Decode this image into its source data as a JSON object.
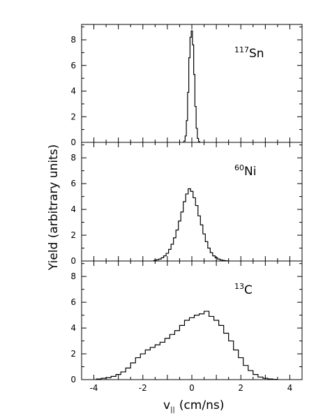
{
  "chart_data": {
    "type": "line",
    "ylabel": "Yield (arbitrary units)",
    "xlabel_main": "v",
    "xlabel_sub": "||",
    "xlabel_unit": "(cm/ns)",
    "xlim": [
      -4.5,
      4.5
    ],
    "x_ticks": [
      "-4",
      "-2",
      "0",
      "2",
      "4"
    ],
    "x_tick_values": [
      -4,
      -2,
      0,
      2,
      4
    ],
    "y_ticks": [
      "0",
      "2",
      "4",
      "6",
      "8"
    ],
    "y_tick_values": [
      0,
      2,
      4,
      6,
      8
    ],
    "grid": false,
    "panels": [
      {
        "label_mass": "117",
        "label_element": "Sn",
        "ylim": [
          0,
          9.2
        ],
        "step": "histogram",
        "x": [
          -0.3,
          -0.25,
          -0.2,
          -0.15,
          -0.1,
          -0.05,
          0.0,
          0.05,
          0.1,
          0.15,
          0.2,
          0.25,
          0.3
        ],
        "values": [
          0.1,
          0.5,
          1.7,
          3.9,
          6.6,
          8.2,
          8.7,
          7.6,
          5.3,
          2.8,
          1.1,
          0.3,
          0.05
        ]
      },
      {
        "label_mass": "60",
        "label_element": "Ni",
        "ylim": [
          0,
          9.2
        ],
        "step": "histogram",
        "x": [
          -1.5,
          -1.4,
          -1.3,
          -1.2,
          -1.1,
          -1.0,
          -0.9,
          -0.8,
          -0.7,
          -0.6,
          -0.5,
          -0.4,
          -0.3,
          -0.2,
          -0.1,
          0.0,
          0.1,
          0.2,
          0.3,
          0.4,
          0.5,
          0.6,
          0.7,
          0.8,
          0.9,
          1.0,
          1.1,
          1.2,
          1.3,
          1.4
        ],
        "values": [
          0.05,
          0.1,
          0.15,
          0.25,
          0.4,
          0.6,
          0.9,
          1.3,
          1.8,
          2.4,
          3.1,
          3.8,
          4.6,
          5.2,
          5.6,
          5.4,
          4.9,
          4.3,
          3.5,
          2.8,
          2.1,
          1.5,
          1.0,
          0.65,
          0.4,
          0.25,
          0.15,
          0.08,
          0.04,
          0.02
        ]
      },
      {
        "label_mass": "13",
        "label_element": "C",
        "ylim": [
          0,
          9.2
        ],
        "step": "histogram",
        "x": [
          -3.8,
          -3.6,
          -3.4,
          -3.2,
          -3.0,
          -2.8,
          -2.6,
          -2.4,
          -2.2,
          -2.0,
          -1.8,
          -1.6,
          -1.4,
          -1.2,
          -1.0,
          -0.8,
          -0.6,
          -0.4,
          -0.2,
          0.0,
          0.2,
          0.4,
          0.6,
          0.8,
          1.0,
          1.2,
          1.4,
          1.6,
          1.8,
          2.0,
          2.2,
          2.4,
          2.6,
          2.8,
          3.0,
          3.2,
          3.4
        ],
        "values": [
          0.05,
          0.1,
          0.15,
          0.25,
          0.4,
          0.6,
          0.9,
          1.3,
          1.7,
          2.0,
          2.3,
          2.5,
          2.7,
          2.9,
          3.2,
          3.5,
          3.8,
          4.2,
          4.6,
          4.8,
          5.0,
          5.1,
          5.3,
          4.9,
          4.6,
          4.2,
          3.6,
          3.0,
          2.3,
          1.7,
          1.1,
          0.7,
          0.4,
          0.2,
          0.1,
          0.05,
          0.02
        ]
      }
    ]
  }
}
